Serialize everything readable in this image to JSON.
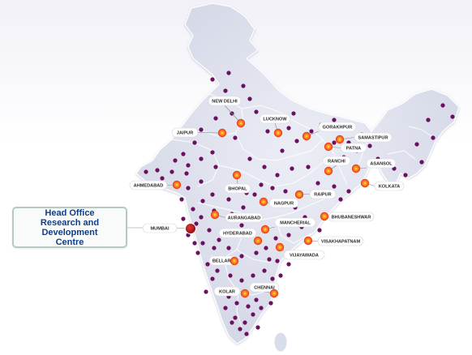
{
  "head_office": {
    "line1": "Head Office",
    "line2": "Research and Development",
    "line3": "Centre"
  },
  "cities": [
    {
      "id": "new-delhi",
      "name": "NEW DELHI"
    },
    {
      "id": "lucknow",
      "name": "LUCKNOW"
    },
    {
      "id": "gorakhpur",
      "name": "GORAKHPUR"
    },
    {
      "id": "samastipur",
      "name": "SAMASTIPUR"
    },
    {
      "id": "jaipur",
      "name": "JAIPUR"
    },
    {
      "id": "patna",
      "name": "PATNA"
    },
    {
      "id": "ranchi",
      "name": "RANCHI"
    },
    {
      "id": "asansol",
      "name": "ASANSOL"
    },
    {
      "id": "ahmedabad",
      "name": "AHMEDABAD"
    },
    {
      "id": "kolkata",
      "name": "KOLKATA"
    },
    {
      "id": "bhopal",
      "name": "BHOPAL"
    },
    {
      "id": "raipur",
      "name": "RAIPUR"
    },
    {
      "id": "nagpur",
      "name": "NAGPUR"
    },
    {
      "id": "bhubaneshwar",
      "name": "BHUBANESHWAR"
    },
    {
      "id": "mumbai",
      "name": "MUMBAI"
    },
    {
      "id": "aurangabad",
      "name": "AURANGABAD"
    },
    {
      "id": "mancherial",
      "name": "MANCHERIAL"
    },
    {
      "id": "hyderabad",
      "name": "HYDERABAD"
    },
    {
      "id": "visakhapatnam",
      "name": "VISAKHAPATNAM"
    },
    {
      "id": "vijayawada",
      "name": "VIJAYAWADA"
    },
    {
      "id": "bellary",
      "name": "BELLARY"
    },
    {
      "id": "chennai",
      "name": "CHENNAI"
    },
    {
      "id": "kolar",
      "name": "KOLAR"
    }
  ],
  "colors": {
    "land": "#dfe1ee",
    "border": "#ffffff",
    "dot": "#6b0f5f",
    "marker": "#f2451c",
    "marker_core": "#ffcc33",
    "head_office_marker": "#b5121b",
    "callout_text": "#0f3d88"
  }
}
